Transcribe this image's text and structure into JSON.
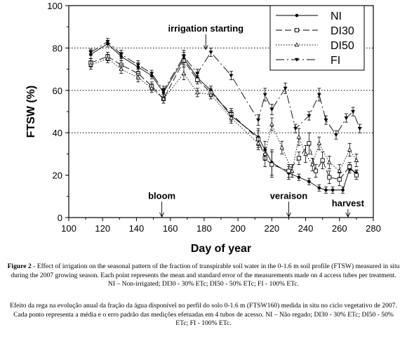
{
  "chart_data": {
    "type": "line",
    "xlabel": "Day of year",
    "ylabel": "FTSW  (%)",
    "xlim": [
      100,
      280
    ],
    "ylim": [
      0,
      100
    ],
    "xticks": [
      100,
      120,
      140,
      160,
      180,
      200,
      220,
      240,
      260,
      280
    ],
    "yticks": [
      0,
      20,
      40,
      60,
      80,
      100
    ],
    "grid": "horizontal dotted at 40, 60, 80",
    "legend_position": "top-right",
    "series": [
      {
        "name": "NI",
        "marker": "filled-circle",
        "dash": "solid",
        "x": [
          113,
          123,
          131,
          141,
          149,
          156,
          168,
          176,
          184,
          196,
          212,
          216,
          220,
          230,
          236,
          242,
          248,
          252,
          256,
          262,
          266,
          270
        ],
        "y": [
          77,
          82,
          76,
          71,
          67,
          59,
          75,
          66,
          60,
          48,
          38,
          32,
          26,
          21,
          19,
          17,
          14,
          13,
          13,
          13,
          23,
          21
        ],
        "err": [
          2,
          1.5,
          2,
          2,
          1.5,
          2,
          3,
          2,
          2,
          2.5,
          4,
          4,
          6,
          3,
          1.5,
          1.5,
          1.5,
          1.5,
          1.5,
          1.5,
          2,
          1.5
        ]
      },
      {
        "name": "DI30",
        "marker": "open-square",
        "dash": "long-dash",
        "x": [
          113,
          123,
          131,
          141,
          149,
          156,
          168,
          176,
          184,
          196,
          212,
          216,
          220,
          230,
          236,
          242,
          246,
          250,
          254,
          260,
          266,
          270
        ],
        "y": [
          73,
          76,
          72,
          68,
          62,
          56,
          74,
          65,
          59,
          49,
          37,
          28,
          25,
          22,
          28,
          35,
          22,
          27,
          19,
          18,
          24,
          20
        ],
        "err": [
          2,
          2,
          2,
          2,
          2,
          2,
          3,
          2,
          2,
          2.5,
          4,
          4,
          6,
          3,
          3,
          5,
          3,
          4,
          3,
          3,
          2,
          2
        ]
      },
      {
        "name": "DI50",
        "marker": "open-triangle",
        "dash": "dotted",
        "x": [
          113,
          123,
          131,
          141,
          149,
          156,
          168,
          176,
          184,
          196,
          212,
          216,
          220,
          226,
          232,
          236,
          240,
          244,
          248,
          254,
          260,
          266,
          270
        ],
        "y": [
          72,
          75,
          70,
          66,
          61,
          56,
          68,
          59,
          58,
          47,
          35,
          30,
          44,
          33,
          22,
          38,
          30,
          25,
          35,
          26,
          22,
          32,
          27
        ],
        "err": [
          2,
          2,
          2,
          2,
          2,
          2,
          3,
          2,
          2,
          2.5,
          3,
          3,
          3,
          3,
          3,
          4,
          4,
          3,
          3,
          3,
          3,
          3,
          3
        ]
      },
      {
        "name": "FI",
        "marker": "filled-triangle-down",
        "dash": "dash-dot",
        "x": [
          113,
          123,
          131,
          141,
          149,
          156,
          168,
          176,
          184,
          196,
          212,
          216,
          220,
          228,
          234,
          242,
          248,
          252,
          258,
          264,
          268,
          272
        ],
        "y": [
          78,
          83,
          77,
          72,
          68,
          60,
          76,
          68,
          78,
          67,
          46,
          58,
          51,
          61,
          42,
          48,
          58,
          46,
          39,
          47,
          50,
          42
        ],
        "err": [
          1.5,
          1.5,
          2,
          2,
          1.5,
          2,
          3,
          2,
          2,
          2,
          2.5,
          3,
          2.5,
          2.5,
          2,
          2,
          3,
          2,
          2,
          2,
          2,
          2
        ]
      }
    ],
    "annotations": [
      {
        "text": "irrigation starting",
        "x": 181,
        "arrow_from_y": 86.5,
        "arrow_to_y": 79
      },
      {
        "text": "bloom",
        "x": 155,
        "arrow_from_y": 7.5,
        "arrow_to_y": 0
      },
      {
        "text": "veraison",
        "x": 230,
        "arrow_from_y": 7.5,
        "arrow_to_y": 0
      },
      {
        "text": "harvest",
        "x": 265,
        "arrow_from_y": 4,
        "arrow_to_y": 0
      }
    ]
  },
  "caption_en": {
    "label": "Figure 2",
    "text": " - Effect of irrigation on the seasonal pattern of the fraction of transpirable soil water in the 0-1.6 m soil profile (FTSW) measured in situ during the 2007 growing season. Each point represents the mean and standard error of the measurements made on 4 access tubes per treatment. NI – Non-irrigated; DI30 - 30% ETc; DI50 - 50% ETc; FI - 100% ETc."
  },
  "caption_pt": "Efeito da rega na evolução anual da fração da água disponível no perfil do solo 0-1.6 m (FTSW160) medida in situ no ciclo vegetativo de 2007. Cada ponto representa a média e o erro padrão das medições efetuadas em 4 tubos de acesso. NI – Não regado; DI30 - 30% ETc; DI50 - 50% ETc; FI - 100% ETc."
}
